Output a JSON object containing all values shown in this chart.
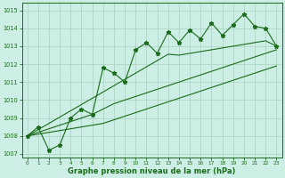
{
  "x": [
    0,
    1,
    2,
    3,
    4,
    5,
    6,
    7,
    8,
    9,
    10,
    11,
    12,
    13,
    14,
    15,
    16,
    17,
    18,
    19,
    20,
    21,
    22,
    23
  ],
  "y_main": [
    1008.0,
    1008.5,
    1007.2,
    1007.5,
    1009.0,
    1009.5,
    1009.2,
    1011.8,
    1011.5,
    1011.0,
    1012.8,
    1013.2,
    1012.6,
    1013.8,
    1013.2,
    1013.9,
    1013.4,
    1014.3,
    1013.6,
    1014.2,
    1014.8,
    1014.1,
    1014.0,
    1013.0
  ],
  "trend_upper": [
    1008.0,
    1008.35,
    1008.7,
    1009.05,
    1009.4,
    1009.75,
    1010.1,
    1010.45,
    1010.8,
    1011.15,
    1011.5,
    1011.85,
    1012.2,
    1012.55,
    1012.5,
    1012.6,
    1012.7,
    1012.8,
    1012.9,
    1013.0,
    1013.1,
    1013.2,
    1013.3,
    1013.0
  ],
  "trend_mid": [
    1008.0,
    1008.2,
    1008.4,
    1008.6,
    1008.8,
    1009.0,
    1009.2,
    1009.5,
    1009.8,
    1010.0,
    1010.2,
    1010.4,
    1010.6,
    1010.8,
    1011.0,
    1011.2,
    1011.4,
    1011.6,
    1011.8,
    1012.0,
    1012.2,
    1012.4,
    1012.6,
    1012.8
  ],
  "trend_lower": [
    1008.0,
    1008.1,
    1008.2,
    1008.3,
    1008.4,
    1008.5,
    1008.6,
    1008.7,
    1008.9,
    1009.1,
    1009.3,
    1009.5,
    1009.7,
    1009.9,
    1010.1,
    1010.3,
    1010.5,
    1010.7,
    1010.9,
    1011.1,
    1011.3,
    1011.5,
    1011.7,
    1011.9
  ],
  "ylim": [
    1006.8,
    1015.4
  ],
  "yticks": [
    1007,
    1008,
    1009,
    1010,
    1011,
    1012,
    1013,
    1014,
    1015
  ],
  "xticks": [
    0,
    1,
    2,
    3,
    4,
    5,
    6,
    7,
    8,
    9,
    10,
    11,
    12,
    13,
    14,
    15,
    16,
    17,
    18,
    19,
    20,
    21,
    22,
    23
  ],
  "xlabel": "Graphe pression niveau de la mer (hPa)",
  "line_color": "#1a6b1a",
  "bg_color": "#cceee4",
  "grid_color": "#aacfbf",
  "marker": "*",
  "marker_size": 3.5,
  "line_width": 0.8,
  "figsize": [
    3.2,
    2.0
  ],
  "dpi": 100
}
